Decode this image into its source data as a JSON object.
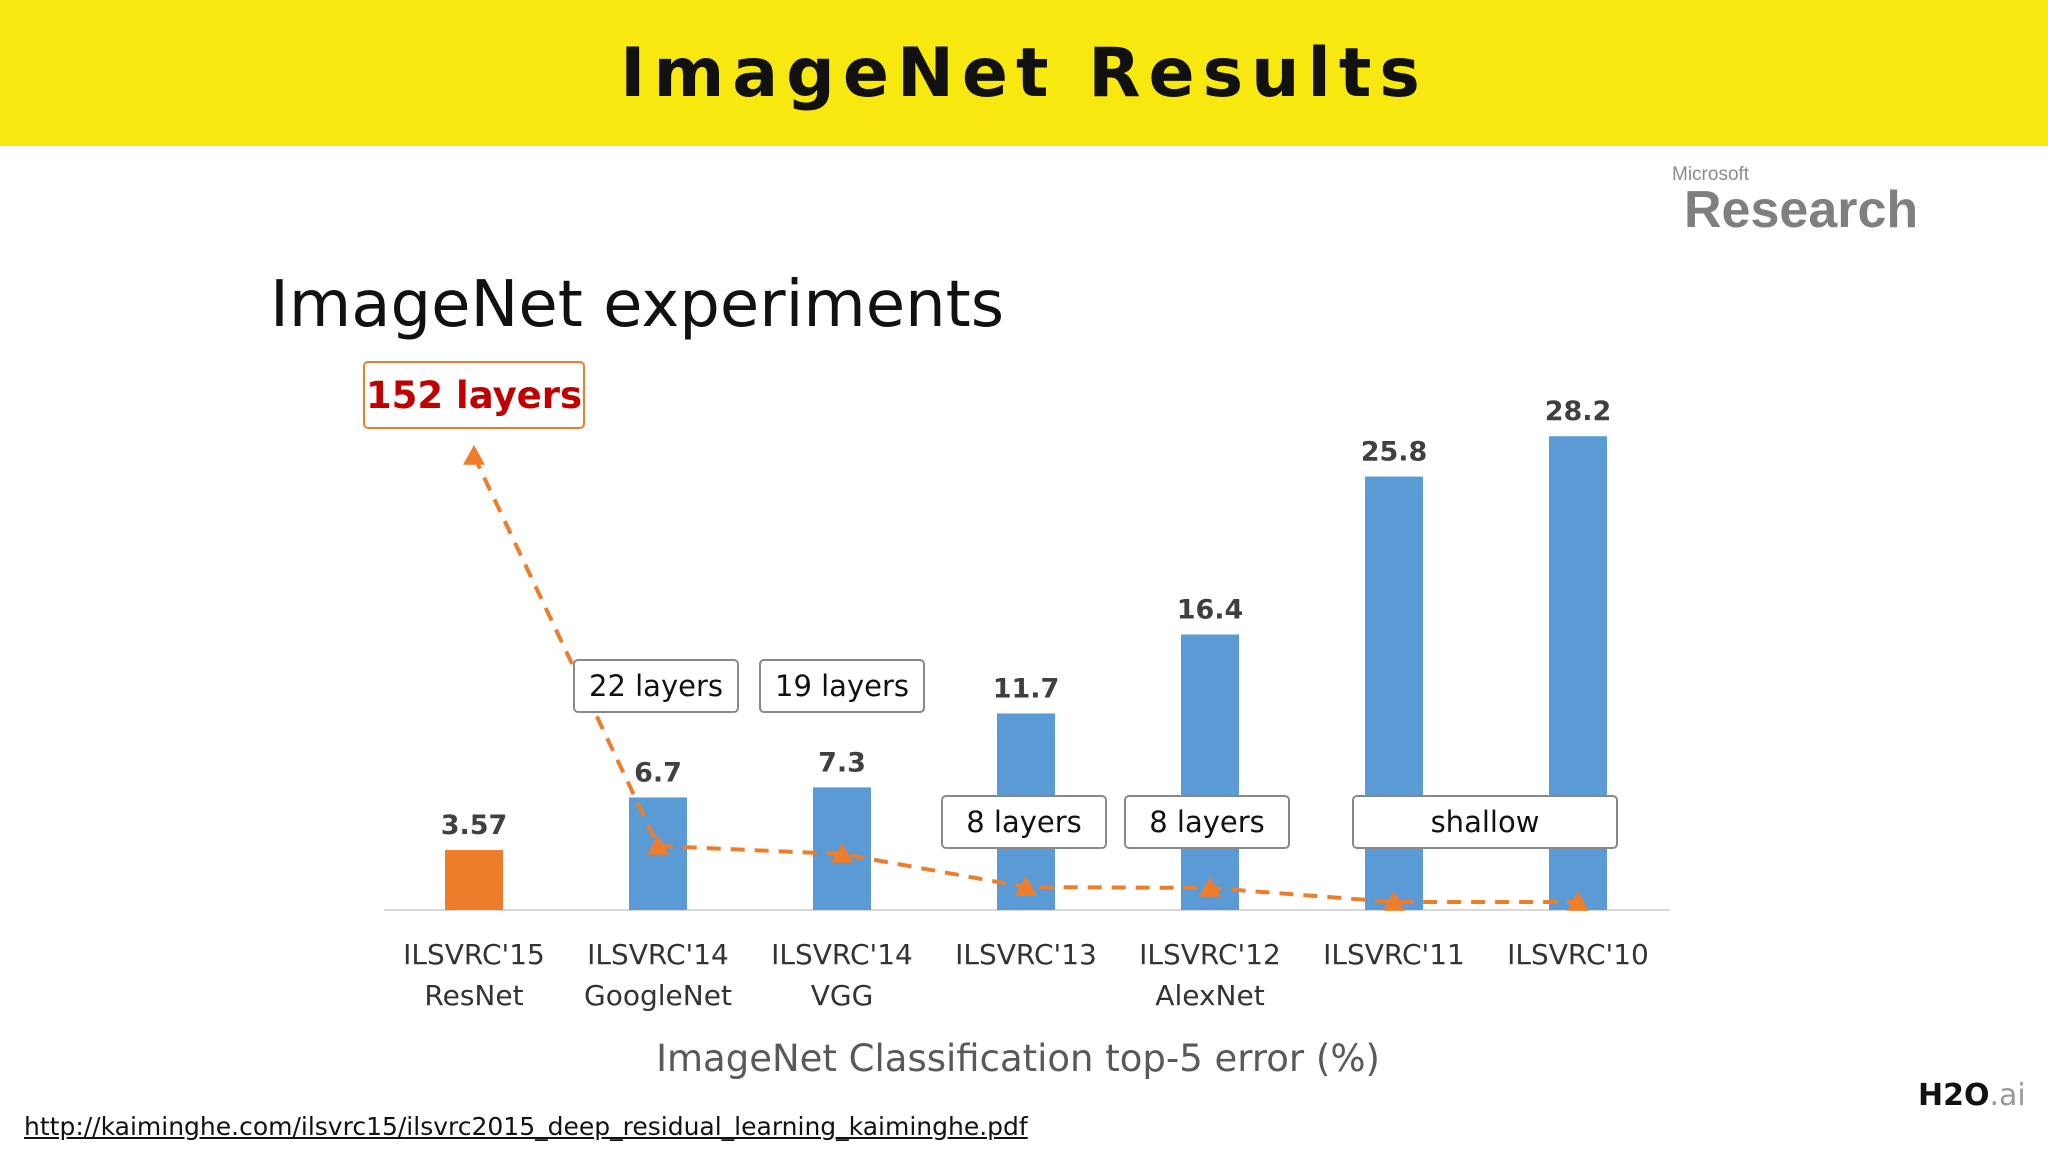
{
  "slide": {
    "title": "ImageNet Results",
    "footer_url": "http://kaiminghe.com/ilsvrc15/ilsvrc2015_deep_residual_learning_kaiminghe.pdf",
    "logo_top": "Microsoft",
    "logo_bottom": "Research",
    "brand_main": "H2O",
    "brand_suffix": ".ai"
  },
  "colors": {
    "banner": "#f7e80f",
    "bar_blue": "#5b9bd5",
    "bar_orange": "#ee7d2b",
    "trend_line": "#ee7d2b",
    "resnet_label": "#c00000"
  },
  "chart_data": {
    "type": "bar",
    "title": "ImageNet experiments",
    "xlabel": "ImageNet Classification top-5 error (%)",
    "ylabel": "",
    "ylim": [
      0,
      30
    ],
    "categories": [
      [
        "ILSVRC'15",
        "ResNet"
      ],
      [
        "ILSVRC'14",
        "GoogleNet"
      ],
      [
        "ILSVRC'14",
        "VGG"
      ],
      [
        "ILSVRC'13",
        ""
      ],
      [
        "ILSVRC'12",
        "AlexNet"
      ],
      [
        "ILSVRC'11",
        ""
      ],
      [
        "ILSVRC'10",
        ""
      ]
    ],
    "values": [
      3.57,
      6.7,
      7.3,
      11.7,
      16.4,
      25.8,
      28.2
    ],
    "value_labels": [
      "3.57",
      "6.7",
      "7.3",
      "11.7",
      "16.4",
      "25.8",
      "28.2"
    ],
    "highlight_index": 0,
    "depth_labels": [
      "152 layers",
      "22 layers",
      "19 layers",
      "8 layers",
      "8 layers",
      "shallow",
      ""
    ],
    "grid": false,
    "legend": "none"
  }
}
